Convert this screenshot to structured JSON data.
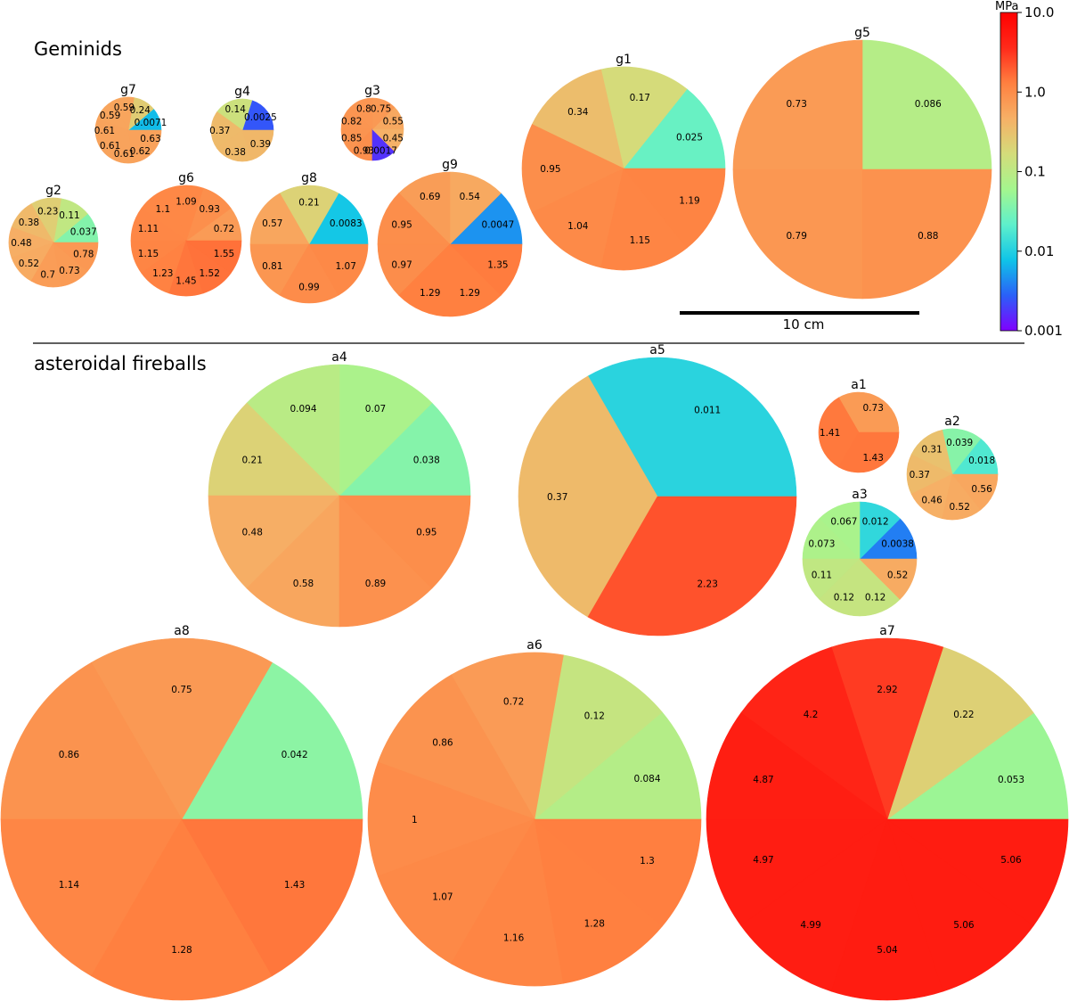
{
  "group_titles": {
    "geminids": "Geminids",
    "asteroidal": "asteroidal fireballs"
  },
  "scale_bar": {
    "label": "10 cm"
  },
  "colorbar": {
    "unit": "MPa",
    "ticks": [
      "10.0",
      "1.0",
      "0.1",
      "0.01",
      "0.001"
    ],
    "log_range": [
      0.001,
      10
    ],
    "stops": [
      "#8000ff",
      "#2a60f8",
      "#0fc4e8",
      "#5ef0cc",
      "#a4f68e",
      "#d4dc7a",
      "#f6b066",
      "#ff8040",
      "#ff2a1a",
      "#ff0000"
    ]
  },
  "chart_data": {
    "type": "pie",
    "title": "",
    "unit": "MPa",
    "pies": [
      {
        "name": "g7",
        "slices": [
          {
            "label": "0.0071",
            "value": 0.0071
          },
          {
            "label": "0.24",
            "value": 0.24
          },
          {
            "label": "0.59",
            "value": 0.59
          },
          {
            "label": "0.59",
            "value": 0.59
          },
          {
            "label": "0.61",
            "value": 0.61
          },
          {
            "label": "0.61",
            "value": 0.61
          },
          {
            "label": "0.61",
            "value": 0.61
          },
          {
            "label": "0.62",
            "value": 0.62
          },
          {
            "label": "0.63",
            "value": 0.63
          }
        ]
      },
      {
        "name": "g4",
        "slices": [
          {
            "label": "0.0025",
            "value": 0.0025
          },
          {
            "label": "0.14",
            "value": 0.14
          },
          {
            "label": "0.37",
            "value": 0.37
          },
          {
            "label": "0.38",
            "value": 0.38
          },
          {
            "label": "0.39",
            "value": 0.39
          }
        ]
      },
      {
        "name": "g3",
        "slices": [
          {
            "label": "0.55",
            "value": 0.55
          },
          {
            "label": "0.75",
            "value": 0.75
          },
          {
            "label": "0.8",
            "value": 0.8
          },
          {
            "label": "0.82",
            "value": 0.82
          },
          {
            "label": "0.85",
            "value": 0.85
          },
          {
            "label": "0.93",
            "value": 0.93
          },
          {
            "label": "0.0017",
            "value": 0.0017
          },
          {
            "label": "0.45",
            "value": 0.45
          }
        ]
      },
      {
        "name": "g2",
        "slices": [
          {
            "label": "0.037",
            "value": 0.037
          },
          {
            "label": "0.11",
            "value": 0.11
          },
          {
            "label": "0.23",
            "value": 0.23
          },
          {
            "label": "0.38",
            "value": 0.38
          },
          {
            "label": "0.48",
            "value": 0.48
          },
          {
            "label": "0.52",
            "value": 0.52
          },
          {
            "label": "0.7",
            "value": 0.7
          },
          {
            "label": "0.73",
            "value": 0.73
          },
          {
            "label": "0.78",
            "value": 0.78
          }
        ]
      },
      {
        "name": "g6",
        "slices": [
          {
            "label": "0.72",
            "value": 0.72
          },
          {
            "label": "0.93",
            "value": 0.93
          },
          {
            "label": "1.09",
            "value": 1.09
          },
          {
            "label": "1.1",
            "value": 1.1
          },
          {
            "label": "1.11",
            "value": 1.11
          },
          {
            "label": "1.15",
            "value": 1.15
          },
          {
            "label": "1.23",
            "value": 1.23
          },
          {
            "label": "1.45",
            "value": 1.45
          },
          {
            "label": "1.52",
            "value": 1.52
          },
          {
            "label": "1.55",
            "value": 1.55
          }
        ]
      },
      {
        "name": "g8",
        "slices": [
          {
            "label": "0.0083",
            "value": 0.0083
          },
          {
            "label": "0.21",
            "value": 0.21
          },
          {
            "label": "0.57",
            "value": 0.57
          },
          {
            "label": "0.81",
            "value": 0.81
          },
          {
            "label": "0.99",
            "value": 0.99
          },
          {
            "label": "1.07",
            "value": 1.07
          }
        ]
      },
      {
        "name": "g9",
        "slices": [
          {
            "label": "0.0047",
            "value": 0.0047
          },
          {
            "label": "0.54",
            "value": 0.54
          },
          {
            "label": "0.69",
            "value": 0.69
          },
          {
            "label": "0.95",
            "value": 0.95
          },
          {
            "label": "0.97",
            "value": 0.97
          },
          {
            "label": "1.29",
            "value": 1.29
          },
          {
            "label": "1.29",
            "value": 1.29
          },
          {
            "label": "1.35",
            "value": 1.35
          }
        ]
      },
      {
        "name": "g1",
        "slices": [
          {
            "label": "0.025",
            "value": 0.025
          },
          {
            "label": "0.17",
            "value": 0.17
          },
          {
            "label": "0.34",
            "value": 0.34
          },
          {
            "label": "0.95",
            "value": 0.95
          },
          {
            "label": "1.04",
            "value": 1.04
          },
          {
            "label": "1.15",
            "value": 1.15
          },
          {
            "label": "1.19",
            "value": 1.19
          }
        ]
      },
      {
        "name": "g5",
        "slices": [
          {
            "label": "0.086",
            "value": 0.086
          },
          {
            "label": "0.73",
            "value": 0.73
          },
          {
            "label": "0.79",
            "value": 0.79
          },
          {
            "label": "0.88",
            "value": 0.88
          }
        ]
      },
      {
        "name": "a4",
        "slices": [
          {
            "label": "0.038",
            "value": 0.038
          },
          {
            "label": "0.07",
            "value": 0.07
          },
          {
            "label": "0.094",
            "value": 0.094
          },
          {
            "label": "0.21",
            "value": 0.21
          },
          {
            "label": "0.48",
            "value": 0.48
          },
          {
            "label": "0.58",
            "value": 0.58
          },
          {
            "label": "0.89",
            "value": 0.89
          },
          {
            "label": "0.95",
            "value": 0.95
          }
        ]
      },
      {
        "name": "a5",
        "slices": [
          {
            "label": "0.011",
            "value": 0.011
          },
          {
            "label": "0.37",
            "value": 0.37
          },
          {
            "label": "2.23",
            "value": 2.23
          }
        ]
      },
      {
        "name": "a1",
        "slices": [
          {
            "label": "0.73",
            "value": 0.73
          },
          {
            "label": "1.41",
            "value": 1.41
          },
          {
            "label": "1.43",
            "value": 1.43
          }
        ]
      },
      {
        "name": "a2",
        "slices": [
          {
            "label": "0.018",
            "value": 0.018
          },
          {
            "label": "0.039",
            "value": 0.039
          },
          {
            "label": "0.31",
            "value": 0.31
          },
          {
            "label": "0.37",
            "value": 0.37
          },
          {
            "label": "0.46",
            "value": 0.46
          },
          {
            "label": "0.52",
            "value": 0.52
          },
          {
            "label": "0.56",
            "value": 0.56
          }
        ]
      },
      {
        "name": "a3",
        "slices": [
          {
            "label": "0.0038",
            "value": 0.0038
          },
          {
            "label": "0.012",
            "value": 0.012
          },
          {
            "label": "0.067",
            "value": 0.067
          },
          {
            "label": "0.073",
            "value": 0.073
          },
          {
            "label": "0.11",
            "value": 0.11
          },
          {
            "label": "0.12",
            "value": 0.12
          },
          {
            "label": "0.12",
            "value": 0.12
          },
          {
            "label": "0.52",
            "value": 0.52
          }
        ]
      },
      {
        "name": "a8",
        "slices": [
          {
            "label": "0.042",
            "value": 0.042
          },
          {
            "label": "0.75",
            "value": 0.75
          },
          {
            "label": "0.86",
            "value": 0.86
          },
          {
            "label": "1.14",
            "value": 1.14
          },
          {
            "label": "1.28",
            "value": 1.28
          },
          {
            "label": "1.43",
            "value": 1.43
          }
        ]
      },
      {
        "name": "a6",
        "slices": [
          {
            "label": "0.084",
            "value": 0.084
          },
          {
            "label": "0.12",
            "value": 0.12
          },
          {
            "label": "0.72",
            "value": 0.72
          },
          {
            "label": "0.86",
            "value": 0.86
          },
          {
            "label": "1",
            "value": 1
          },
          {
            "label": "1.07",
            "value": 1.07
          },
          {
            "label": "1.16",
            "value": 1.16
          },
          {
            "label": "1.28",
            "value": 1.28
          },
          {
            "label": "1.3",
            "value": 1.3
          }
        ]
      },
      {
        "name": "a7",
        "slices": [
          {
            "label": "0.053",
            "value": 0.053
          },
          {
            "label": "0.22",
            "value": 0.22
          },
          {
            "label": "2.92",
            "value": 2.92
          },
          {
            "label": "4.2",
            "value": 4.2
          },
          {
            "label": "4.87",
            "value": 4.87
          },
          {
            "label": "4.97",
            "value": 4.97
          },
          {
            "label": "4.99",
            "value": 4.99
          },
          {
            "label": "5.04",
            "value": 5.04
          },
          {
            "label": "5.06",
            "value": 5.06
          },
          {
            "label": "5.06",
            "value": 5.06
          }
        ]
      }
    ]
  }
}
